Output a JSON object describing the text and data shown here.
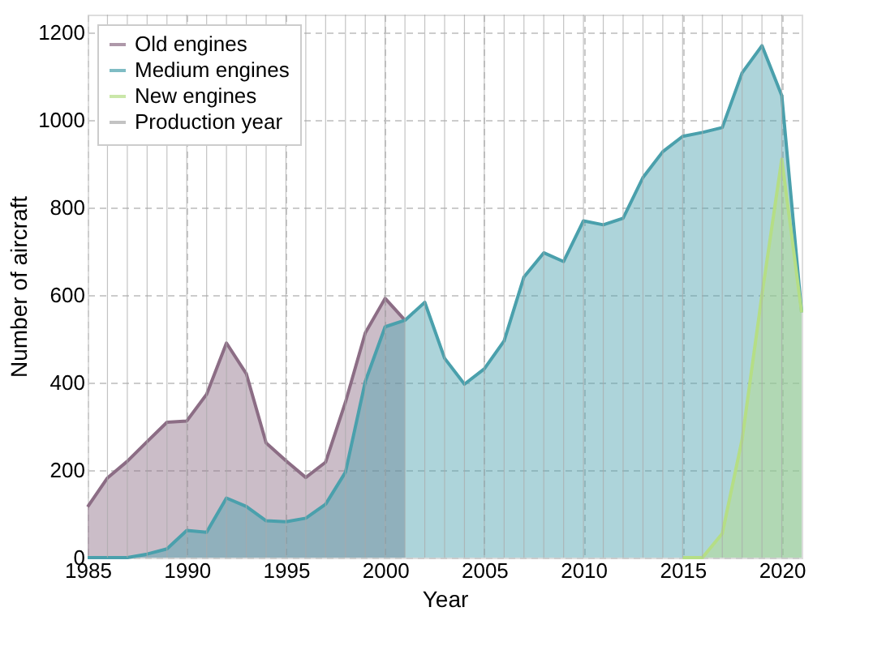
{
  "chart_data": {
    "type": "area",
    "xlabel": "Year",
    "ylabel": "Number of aircraft",
    "x": [
      1985,
      1986,
      1987,
      1988,
      1989,
      1990,
      1991,
      1992,
      1993,
      1994,
      1995,
      1996,
      1997,
      1998,
      1999,
      2000,
      2001,
      2002,
      2003,
      2004,
      2005,
      2006,
      2007,
      2008,
      2009,
      2010,
      2011,
      2012,
      2013,
      2014,
      2015,
      2016,
      2017,
      2018,
      2019,
      2020,
      2021
    ],
    "series": [
      {
        "name": "Old engines",
        "color": "#8c6d85",
        "values": [
          116,
          182,
          220,
          265,
          309,
          312,
          373,
          490,
          420,
          262,
          221,
          183,
          218,
          355,
          513,
          592,
          542,
          null,
          null,
          null,
          null,
          null,
          null,
          null,
          null,
          null,
          null,
          null,
          null,
          null,
          null,
          null,
          null,
          null,
          null,
          null,
          null
        ]
      },
      {
        "name": "Medium engines",
        "color": "#4aa0ac",
        "values": [
          0,
          0,
          0,
          8,
          20,
          62,
          58,
          136,
          117,
          84,
          82,
          90,
          122,
          195,
          402,
          527,
          542,
          583,
          455,
          396,
          431,
          495,
          641,
          696,
          676,
          769,
          760,
          775,
          868,
          927,
          962,
          971,
          982,
          1107,
          1169,
          1055,
          560
        ]
      },
      {
        "name": "New engines",
        "color": "#b5de85",
        "values": [
          null,
          null,
          null,
          null,
          null,
          null,
          null,
          null,
          null,
          null,
          null,
          null,
          null,
          null,
          null,
          null,
          null,
          null,
          null,
          null,
          null,
          null,
          null,
          null,
          null,
          null,
          null,
          null,
          null,
          null,
          0,
          0,
          55,
          270,
          600,
          910,
          560
        ]
      }
    ],
    "ref_lines": [
      {
        "axis": "x",
        "value": 1986,
        "label": "Production year",
        "color": "#aaaaaa"
      },
      {
        "axis": "x",
        "value": 1987,
        "color": "#aaaaaa"
      },
      {
        "axis": "x",
        "value": 1988,
        "color": "#aaaaaa"
      },
      {
        "axis": "x",
        "value": 1989,
        "color": "#aaaaaa"
      },
      {
        "axis": "x",
        "value": 1990,
        "color": "#aaaaaa"
      },
      {
        "axis": "x",
        "value": 1991,
        "color": "#aaaaaa"
      },
      {
        "axis": "x",
        "value": 1992,
        "color": "#aaaaaa"
      },
      {
        "axis": "x",
        "value": 1993,
        "color": "#aaaaaa"
      },
      {
        "axis": "x",
        "value": 1994,
        "color": "#aaaaaa"
      },
      {
        "axis": "x",
        "value": 1995,
        "color": "#aaaaaa"
      },
      {
        "axis": "x",
        "value": 1996,
        "color": "#aaaaaa"
      },
      {
        "axis": "x",
        "value": 1997,
        "color": "#aaaaaa"
      },
      {
        "axis": "x",
        "value": 1998,
        "color": "#aaaaaa"
      },
      {
        "axis": "x",
        "value": 1999,
        "color": "#aaaaaa"
      },
      {
        "axis": "x",
        "value": 2000,
        "color": "#aaaaaa"
      },
      {
        "axis": "x",
        "value": 2001,
        "color": "#aaaaaa"
      },
      {
        "axis": "x",
        "value": 2002,
        "color": "#aaaaaa"
      },
      {
        "axis": "x",
        "value": 2003,
        "color": "#aaaaaa"
      },
      {
        "axis": "x",
        "value": 2004,
        "color": "#aaaaaa"
      },
      {
        "axis": "x",
        "value": 2005,
        "color": "#aaaaaa"
      },
      {
        "axis": "x",
        "value": 2006,
        "color": "#aaaaaa"
      },
      {
        "axis": "x",
        "value": 2007,
        "color": "#aaaaaa"
      },
      {
        "axis": "x",
        "value": 2008,
        "color": "#aaaaaa"
      },
      {
        "axis": "x",
        "value": 2009,
        "color": "#aaaaaa"
      },
      {
        "axis": "x",
        "value": 2010,
        "color": "#aaaaaa"
      },
      {
        "axis": "x",
        "value": 2011,
        "color": "#aaaaaa"
      },
      {
        "axis": "x",
        "value": 2012,
        "color": "#aaaaaa"
      },
      {
        "axis": "x",
        "value": 2013,
        "color": "#aaaaaa"
      },
      {
        "axis": "x",
        "value": 2014,
        "color": "#aaaaaa"
      },
      {
        "axis": "x",
        "value": 2015,
        "color": "#aaaaaa"
      },
      {
        "axis": "x",
        "value": 2016,
        "color": "#aaaaaa"
      },
      {
        "axis": "x",
        "value": 2017,
        "color": "#aaaaaa"
      },
      {
        "axis": "x",
        "value": 2018,
        "color": "#aaaaaa"
      },
      {
        "axis": "x",
        "value": 2019,
        "color": "#aaaaaa"
      },
      {
        "axis": "x",
        "value": 2020,
        "color": "#aaaaaa"
      }
    ],
    "xlim": [
      1985,
      2021
    ],
    "xticks": [
      1985,
      1990,
      1995,
      2000,
      2005,
      2010,
      2015,
      2020
    ],
    "ylim": [
      0,
      1240
    ],
    "yticks": [
      0,
      200,
      400,
      600,
      800,
      1000,
      1200
    ],
    "grid": true,
    "legend": "top left"
  }
}
